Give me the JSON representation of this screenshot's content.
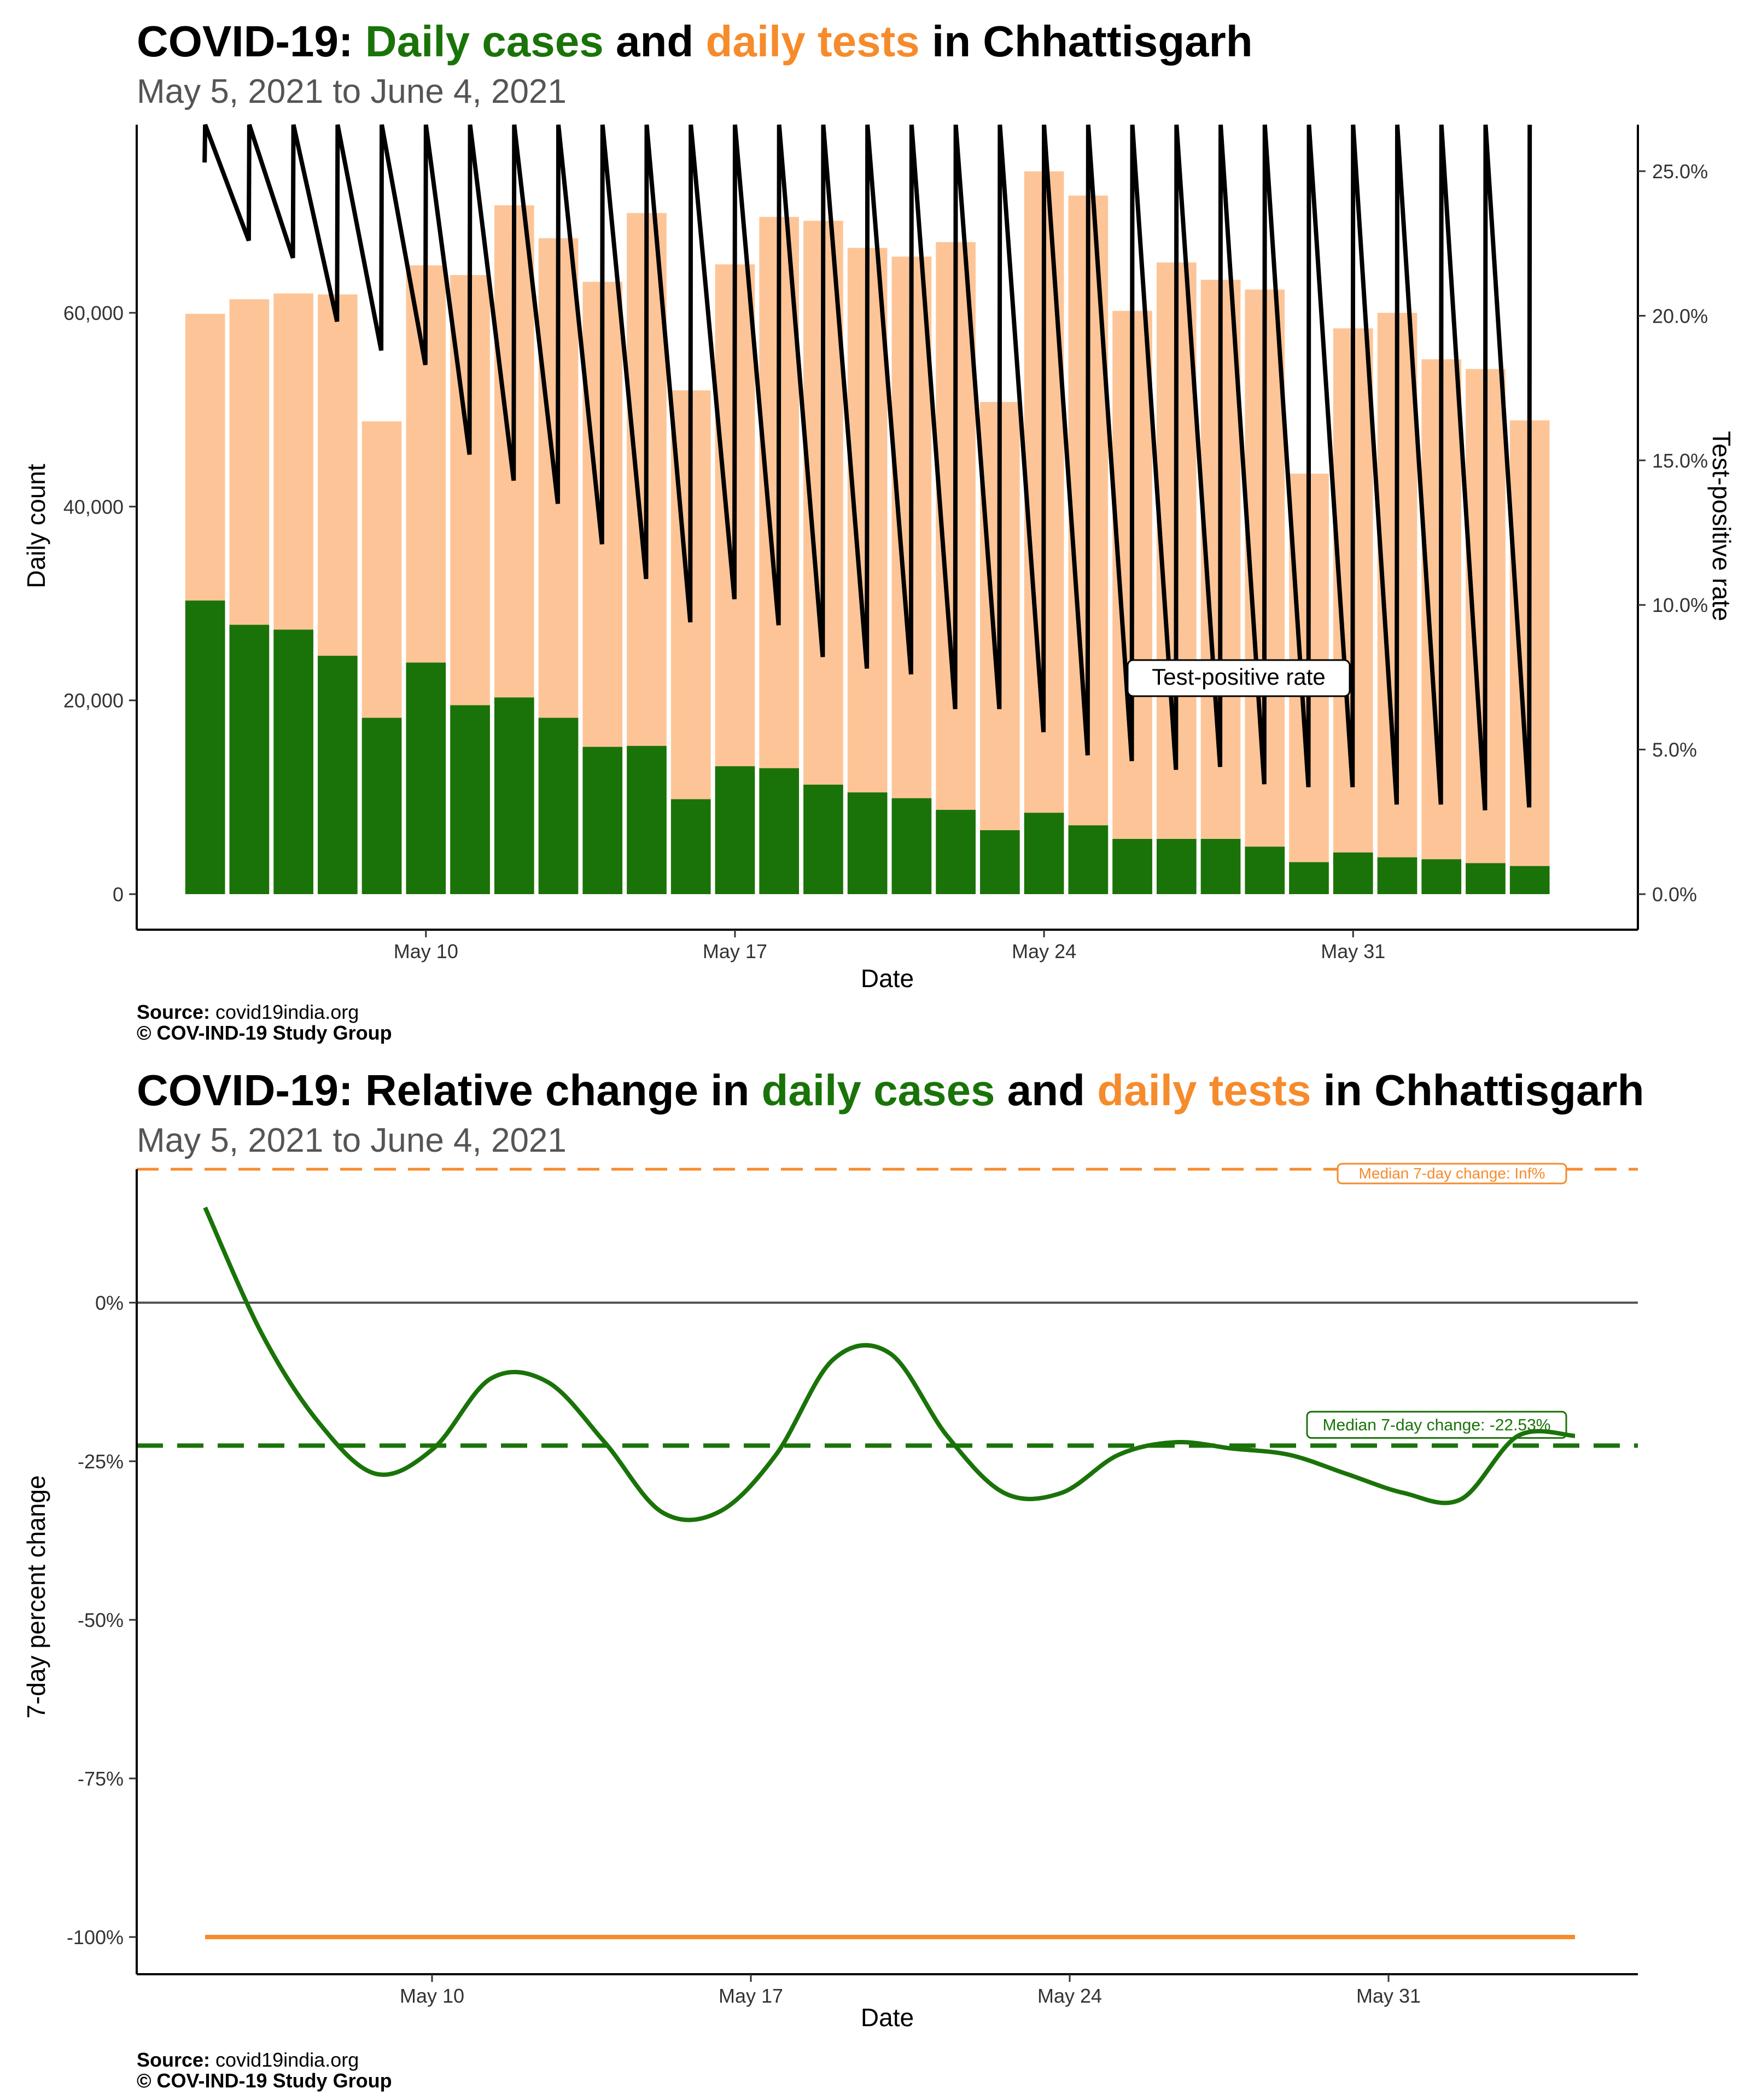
{
  "colors": {
    "cases": "#1a7309",
    "tests": "#f68b2c",
    "tests_bar": "#fdc597",
    "tpr_line": "#000000",
    "zero_line": "#555555"
  },
  "panel1": {
    "title_prefix": "COVID-19: ",
    "title_cases": "Daily cases",
    "title_mid": " and ",
    "title_tests": "daily tests",
    "title_suffix": " in Chhattisgarh",
    "subtitle": "May  5, 2021 to June  4, 2021",
    "caption_source_label": "Source:",
    "caption_source": " covid19india.org",
    "caption_copyright": "© COV-IND-19 Study Group"
  },
  "panel2": {
    "title_prefix": "COVID-19: Relative change in ",
    "title_cases": "daily cases",
    "title_mid": " and ",
    "title_tests": "daily tests",
    "title_suffix": " in Chhattisgarh",
    "subtitle": "May  5, 2021 to June  4, 2021",
    "caption_source_label": "Source:",
    "caption_source": " covid19india.org",
    "caption_copyright": "© COV-IND-19 Study Group"
  },
  "chart_data": [
    {
      "type": "bar",
      "xlabel": "Date",
      "ylabel": "Daily count",
      "y2label": "Test-positive rate",
      "x_ticks": [
        "May 10",
        "May 17",
        "May 24",
        "May 31"
      ],
      "y_ticks": [
        "0",
        "20,000",
        "40,000",
        "60,000"
      ],
      "y2_ticks": [
        "0.0%",
        "5.0%",
        "10.0%",
        "15.0%",
        "20.0%",
        "25.0%"
      ],
      "ylim": [
        0,
        79000
      ],
      "y2lim": [
        0,
        26.5
      ],
      "annotation": "Test-positive rate",
      "dates": [
        "2021-05-05",
        "2021-05-06",
        "2021-05-07",
        "2021-05-08",
        "2021-05-09",
        "2021-05-10",
        "2021-05-11",
        "2021-05-12",
        "2021-05-13",
        "2021-05-14",
        "2021-05-15",
        "2021-05-16",
        "2021-05-17",
        "2021-05-18",
        "2021-05-19",
        "2021-05-20",
        "2021-05-21",
        "2021-05-22",
        "2021-05-23",
        "2021-05-24",
        "2021-05-25",
        "2021-05-26",
        "2021-05-27",
        "2021-05-28",
        "2021-05-29",
        "2021-05-30",
        "2021-05-31",
        "2021-06-01",
        "2021-06-02",
        "2021-06-03",
        "2021-06-04"
      ],
      "series": [
        {
          "name": "Daily tests",
          "values": [
            59900,
            61400,
            62000,
            61900,
            48800,
            64900,
            63900,
            71100,
            67700,
            63200,
            70300,
            52000,
            65000,
            69900,
            69500,
            66700,
            65800,
            67300,
            50800,
            74600,
            72100,
            60200,
            65200,
            63400,
            62400,
            43400,
            58400,
            60000,
            55200,
            54200,
            48900
          ]
        },
        {
          "name": "Daily cases",
          "values": [
            30300,
            27800,
            27300,
            24600,
            18200,
            23900,
            19500,
            20300,
            18200,
            15200,
            15300,
            9800,
            13200,
            13000,
            11300,
            10500,
            9900,
            8700,
            6600,
            8400,
            7100,
            5700,
            5700,
            5700,
            4900,
            3300,
            4300,
            3800,
            3600,
            3200,
            2900
          ]
        }
      ],
      "tpr_percent": [
        25.3,
        22.6,
        22.0,
        19.8,
        18.8,
        18.3,
        15.2,
        14.3,
        13.5,
        12.1,
        10.9,
        9.4,
        10.2,
        9.3,
        8.2,
        7.8,
        7.6,
        6.4,
        6.4,
        5.6,
        4.8,
        4.6,
        4.3,
        4.4,
        3.8,
        3.7,
        3.7,
        3.1,
        3.1,
        2.9,
        3.0
      ]
    },
    {
      "type": "line",
      "xlabel": "Date",
      "ylabel": "7-day percent change",
      "x_ticks": [
        "May 10",
        "May 17",
        "May 24",
        "May 31"
      ],
      "y_ticks": [
        "-100%",
        "-75%",
        "-50%",
        "-25%",
        "0%"
      ],
      "ylim": [
        -105.5,
        21
      ],
      "median_cases": -22.53,
      "median_cases_label": "Median 7-day change: -22.53%",
      "median_tests": 21,
      "median_tests_label": "Median 7-day change: Inf%",
      "series": [
        {
          "name": "Daily cases",
          "values": [
            15,
            -5,
            -19,
            -27,
            -23,
            -12,
            -12.5,
            -22,
            -33,
            -33,
            -24,
            -9,
            -8,
            -21,
            -30,
            -30,
            -24,
            -22,
            -23,
            -24,
            -27,
            -30,
            -31,
            -21,
            -21
          ]
        },
        {
          "name": "Daily tests",
          "values": [
            -100,
            -100,
            -100,
            -100,
            -100,
            -100,
            -100,
            -100,
            -100,
            -100,
            -100,
            -100,
            -100,
            -100,
            -100,
            -100,
            -100,
            -100,
            -100,
            -100,
            -100,
            -100,
            -100,
            -100,
            -100
          ]
        }
      ],
      "series_days": [
        0,
        1.25,
        2.5,
        3.75,
        5,
        6.25,
        7.5,
        8.75,
        10,
        11.25,
        12.5,
        13.75,
        15,
        16.25,
        17.5,
        18.75,
        20,
        21.25,
        22.5,
        23.75,
        25,
        26.25,
        27.5,
        28.75,
        30
      ]
    }
  ]
}
